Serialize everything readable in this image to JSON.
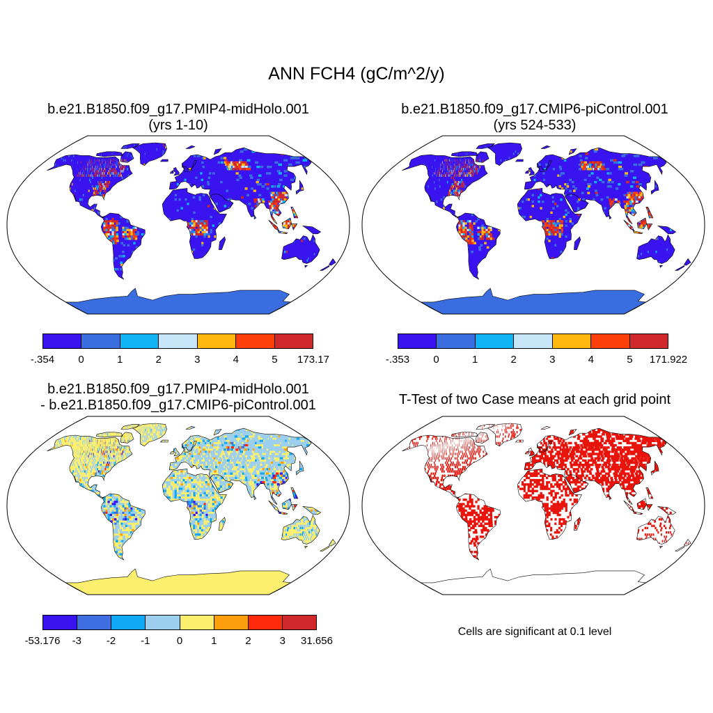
{
  "figure": {
    "title": "ANN FCH4 (gC/m^2/y)"
  },
  "panels": [
    {
      "id": "midholo",
      "title_line1": "b.e21.B1850.f09_g17.PMIP4-midHolo.001",
      "title_line2": "(yrs 1-10)",
      "colorbar": {
        "colors": [
          "#3a14f0",
          "#3a6ee0",
          "#10b4f4",
          "#c6e6f8",
          "#fdb812",
          "#fd3f0a",
          "#d1282c"
        ],
        "labels": [
          "-.354",
          "0",
          "1",
          "2",
          "3",
          "4",
          "5",
          "173.17"
        ]
      }
    },
    {
      "id": "picontrol",
      "title_line1": "b.e21.B1850.f09_g17.CMIP6-piControl.001",
      "title_line2": "(yrs 524-533)",
      "colorbar": {
        "colors": [
          "#3a14f0",
          "#3a6ee0",
          "#10b4f4",
          "#c6e6f8",
          "#fdb812",
          "#fd3f0a",
          "#d1282c"
        ],
        "labels": [
          "-.353",
          "0",
          "1",
          "2",
          "3",
          "4",
          "5",
          "171.922"
        ]
      }
    },
    {
      "id": "difference",
      "title_line1": "b.e21.B1850.f09_g17.PMIP4-midHolo.001",
      "title_line2": "- b.e21.B1850.f09_g17.CMIP6-piControl.001",
      "colorbar": {
        "colors": [
          "#3a14f0",
          "#3e6ee0",
          "#10a8f4",
          "#9ccfee",
          "#fdef6e",
          "#fd9e0c",
          "#fd2a0c",
          "#d1282c"
        ],
        "labels": [
          "-53.176",
          "-3",
          "-2",
          "-1",
          "0",
          "1",
          "2",
          "3",
          "31.656"
        ]
      }
    },
    {
      "id": "ttest",
      "title_line1": "T-Test of two Case means at each grid point",
      "note": "Cells are significant at 0.1 level",
      "significant_color": "#e8140c"
    }
  ]
}
